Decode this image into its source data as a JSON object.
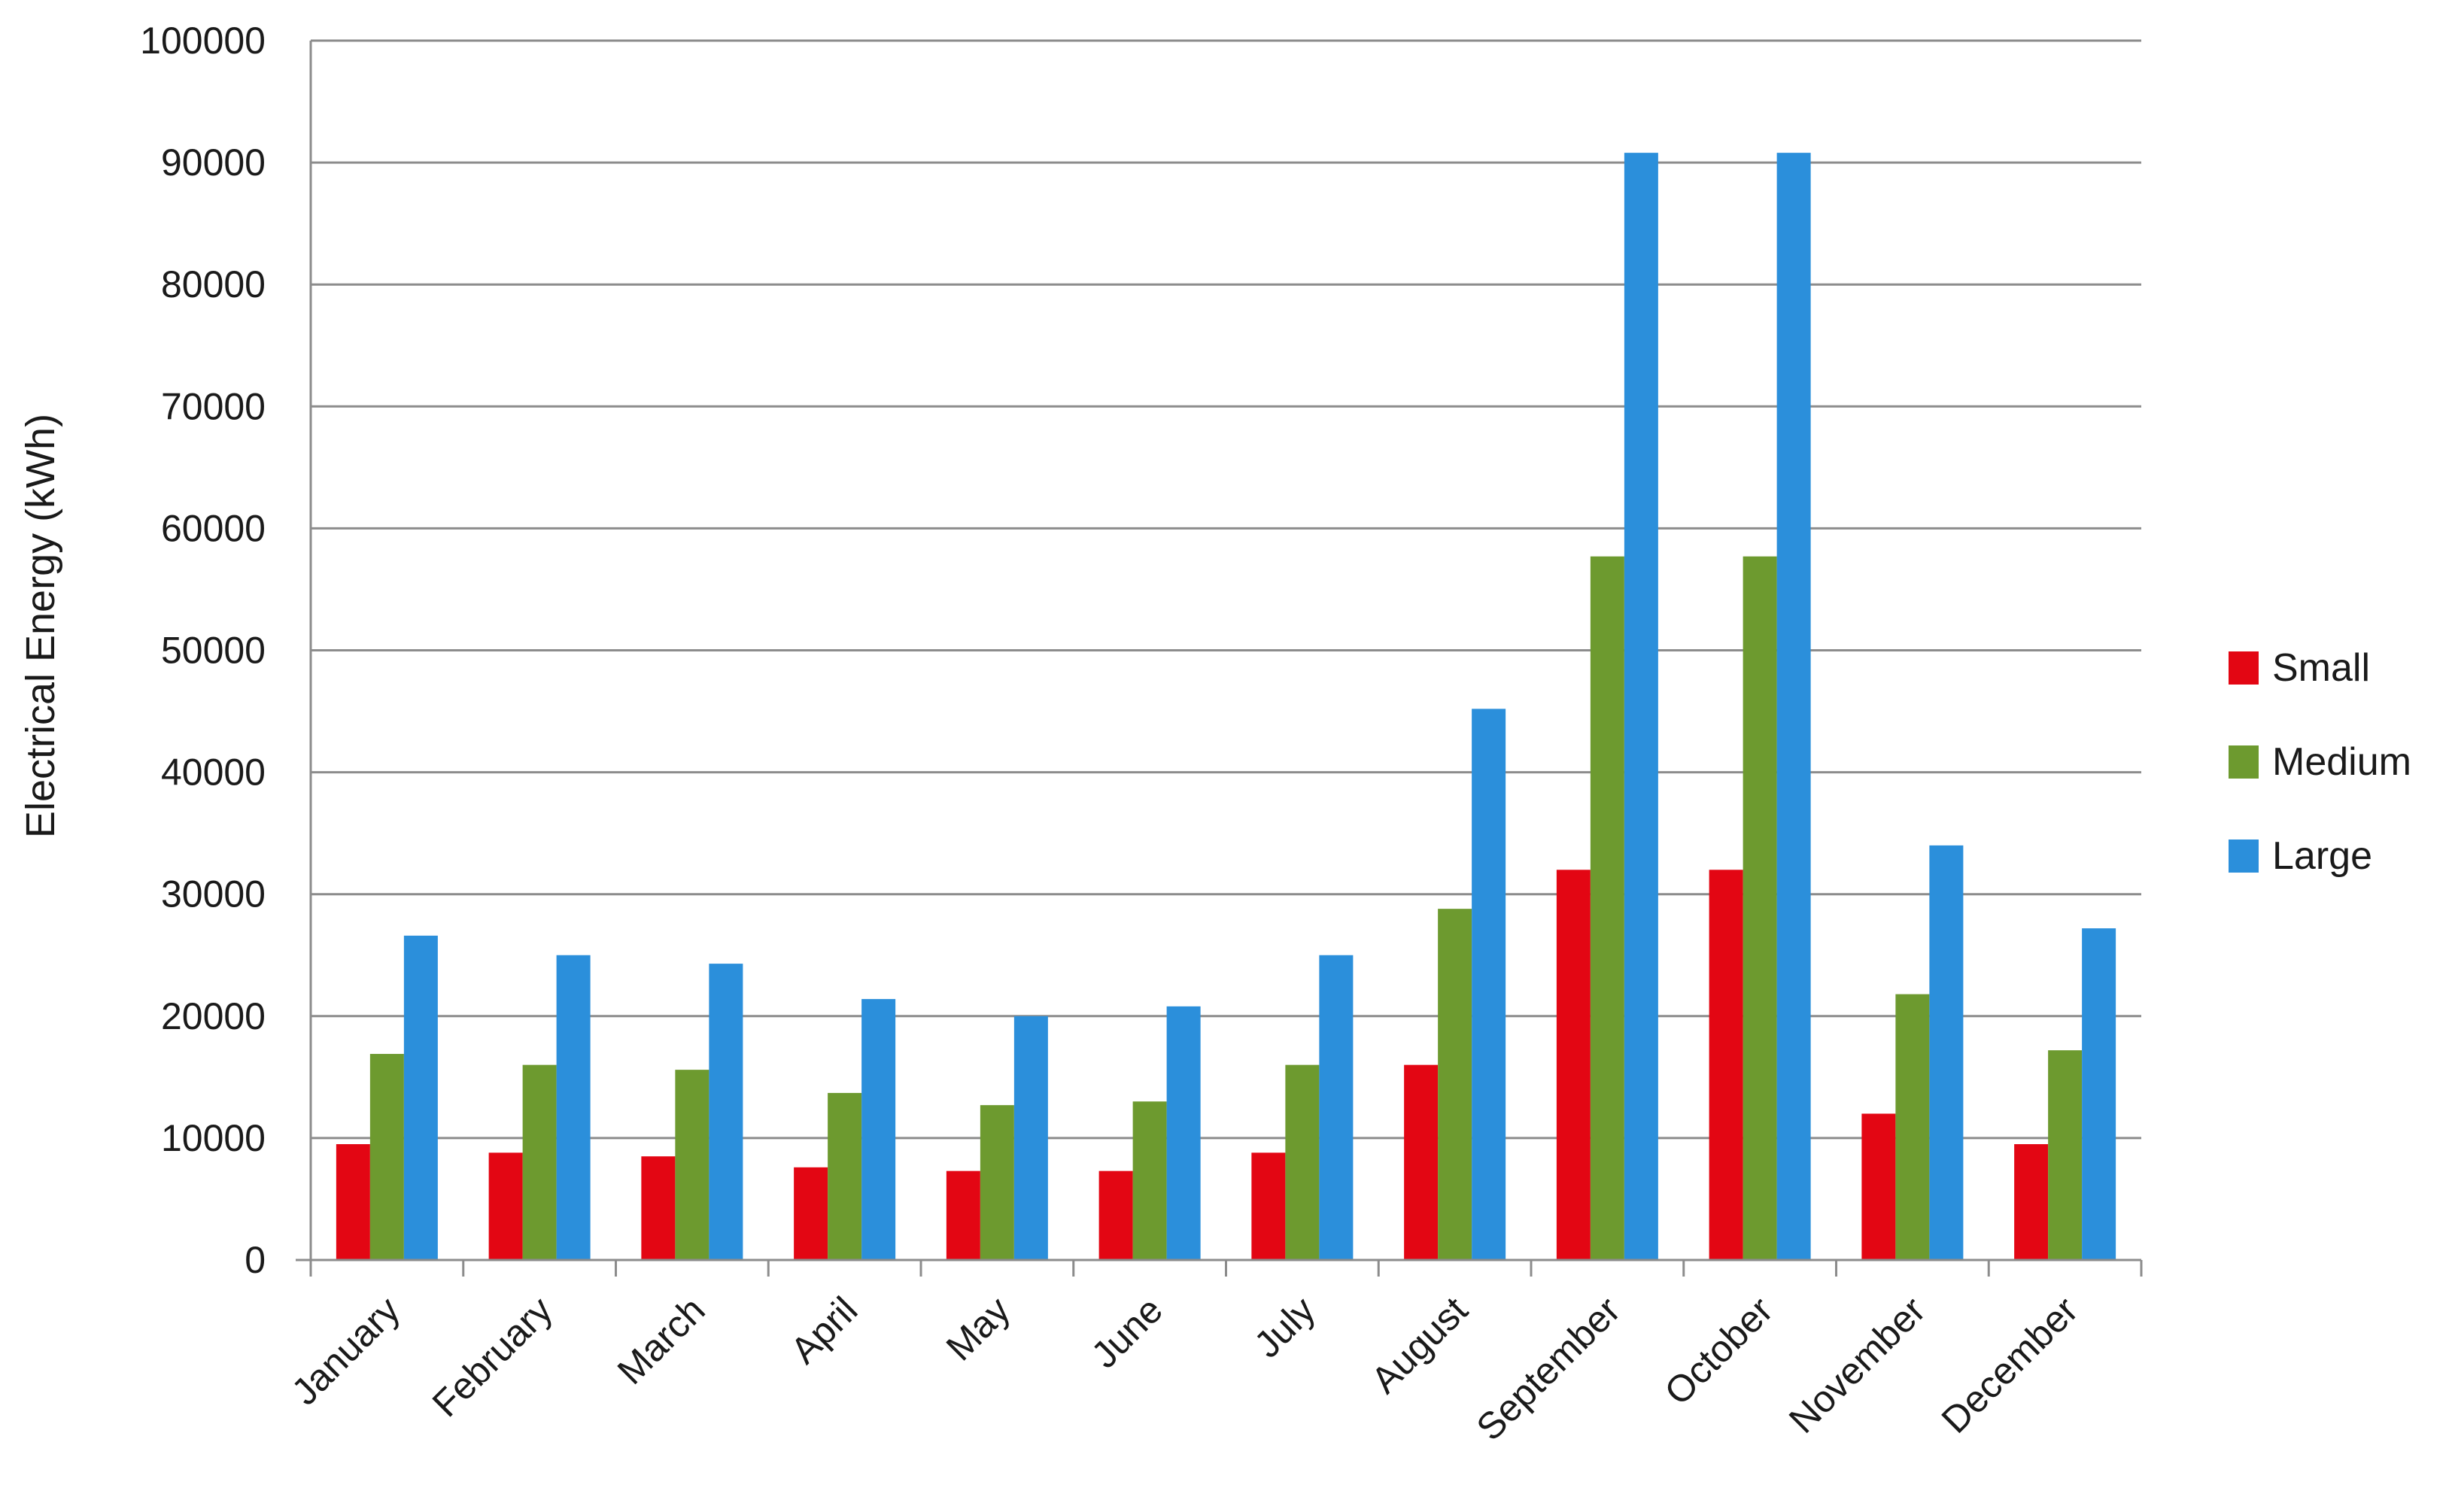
{
  "chart_data": {
    "type": "bar",
    "title": "",
    "xlabel": "",
    "ylabel": "Electrical Energy (kWh)",
    "ylim": [
      0,
      100000
    ],
    "yticks": [
      0,
      10000,
      20000,
      30000,
      40000,
      50000,
      60000,
      70000,
      80000,
      90000,
      100000
    ],
    "grid": true,
    "legend_position": "right",
    "categories": [
      "January",
      "February",
      "March",
      "April",
      "May",
      "June",
      "July",
      "August",
      "September",
      "October",
      "November",
      "December"
    ],
    "series": [
      {
        "name": "Small",
        "color": "#e30613",
        "values": [
          9500,
          8800,
          8500,
          7600,
          7300,
          7300,
          8800,
          16000,
          32000,
          32000,
          12000,
          9500
        ]
      },
      {
        "name": "Medium",
        "color": "#6d9a2f",
        "values": [
          16900,
          16000,
          15600,
          13700,
          12700,
          13000,
          16000,
          28800,
          57700,
          57700,
          21800,
          17200
        ]
      },
      {
        "name": "Large",
        "color": "#2b8fdb",
        "values": [
          26600,
          25000,
          24300,
          21400,
          20000,
          20800,
          25000,
          45200,
          90800,
          90800,
          34000,
          27200
        ]
      }
    ]
  }
}
